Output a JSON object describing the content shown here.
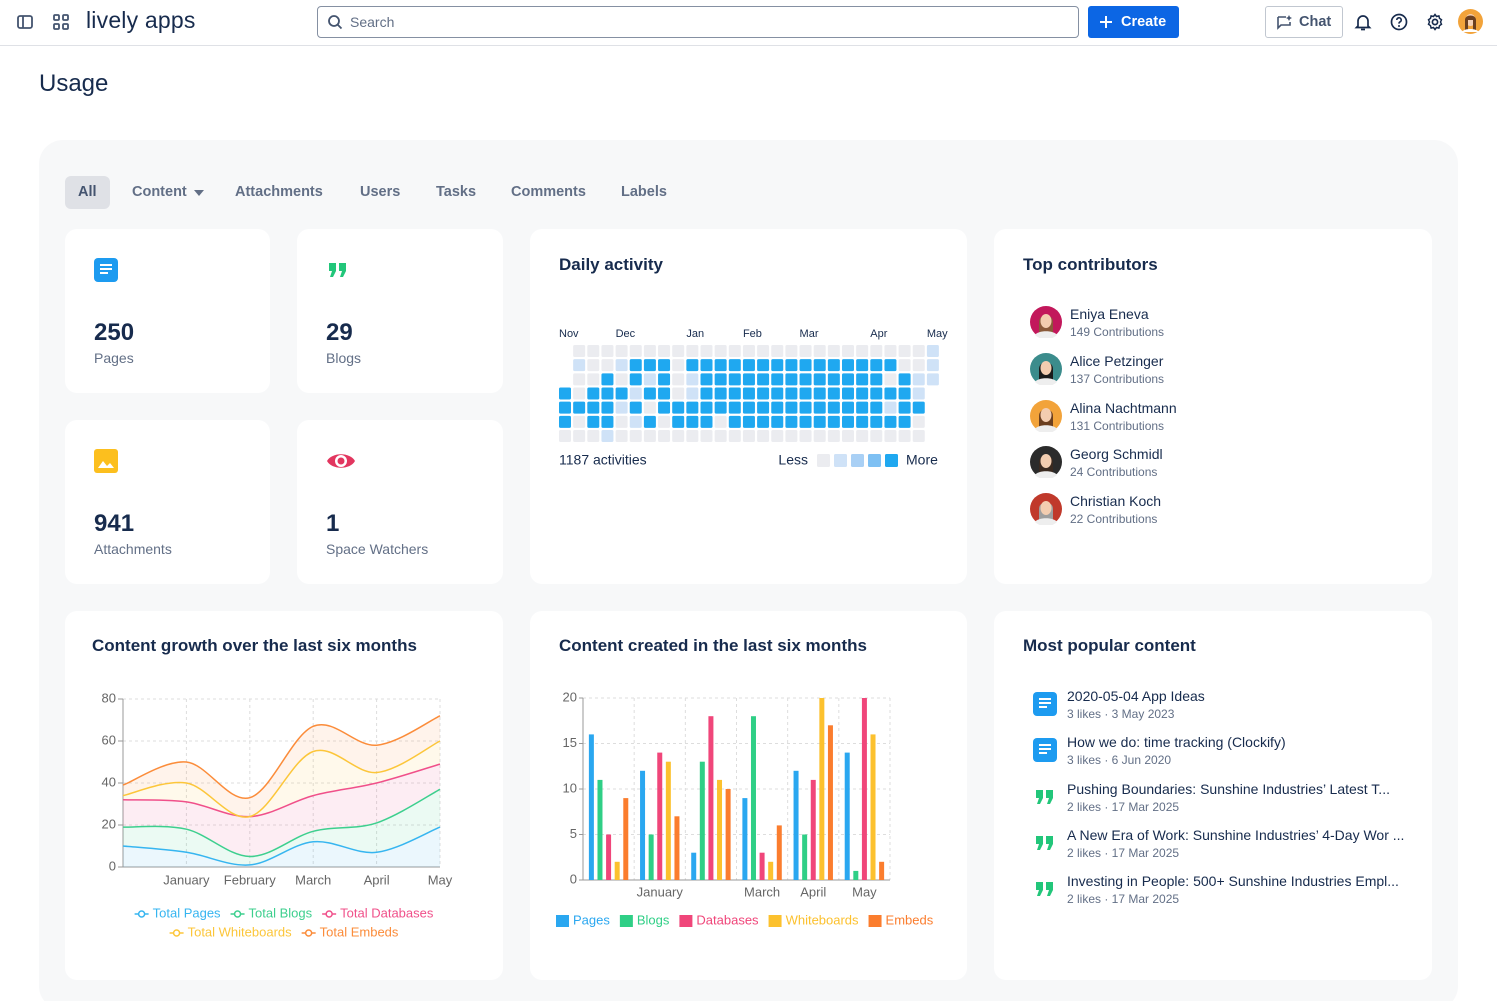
{
  "header": {
    "brand": "lively apps",
    "search": "Search",
    "create": "Create",
    "chat": "Chat"
  },
  "page_title": "Usage",
  "tabs": [
    "All",
    "Content",
    "Attachments",
    "Users",
    "Tasks",
    "Comments",
    "Labels"
  ],
  "stats": [
    {
      "value": 250,
      "label": "Pages",
      "icon": "page"
    },
    {
      "value": 29,
      "label": "Blogs",
      "icon": "blog"
    },
    {
      "value": 941,
      "label": "Attachments",
      "icon": "image"
    },
    {
      "value": 1,
      "label": "Space Watchers",
      "icon": "eye"
    }
  ],
  "daily_activity": {
    "title": "Daily activity",
    "weeks": [
      "Nov",
      null,
      null,
      null,
      "Dec",
      null,
      null,
      null,
      null,
      "Jan",
      null,
      null,
      null,
      "Feb",
      null,
      null,
      null,
      "Mar",
      null,
      null,
      null,
      null,
      "Apr",
      null,
      null,
      null,
      "May"
    ],
    "levels": [
      [
        null,
        0,
        0,
        0,
        0,
        0,
        0,
        0,
        0,
        0,
        0,
        0,
        0,
        0,
        0,
        0,
        0,
        0,
        0,
        0,
        0,
        0,
        0,
        0,
        0,
        0,
        1
      ],
      [
        null,
        1,
        0,
        0,
        1,
        4,
        4,
        4,
        0,
        4,
        4,
        4,
        4,
        4,
        4,
        4,
        4,
        4,
        4,
        4,
        4,
        4,
        4,
        4,
        0,
        0,
        1
      ],
      [
        null,
        0,
        0,
        4,
        0,
        4,
        1,
        4,
        0,
        1,
        4,
        4,
        4,
        4,
        4,
        4,
        4,
        4,
        4,
        4,
        4,
        4,
        4,
        0,
        4,
        1,
        1
      ],
      [
        4,
        0,
        4,
        4,
        4,
        1,
        4,
        4,
        0,
        1,
        4,
        4,
        4,
        4,
        4,
        4,
        4,
        4,
        4,
        4,
        4,
        4,
        4,
        4,
        4,
        1,
        null
      ],
      [
        4,
        4,
        4,
        4,
        1,
        4,
        0,
        4,
        4,
        4,
        4,
        4,
        4,
        4,
        4,
        4,
        4,
        4,
        4,
        4,
        4,
        4,
        4,
        1,
        4,
        4,
        null
      ],
      [
        4,
        0,
        4,
        4,
        0,
        1,
        4,
        0,
        4,
        4,
        4,
        0,
        4,
        4,
        4,
        4,
        4,
        4,
        4,
        4,
        4,
        4,
        4,
        4,
        4,
        0,
        null
      ],
      [
        0,
        0,
        0,
        1,
        0,
        0,
        0,
        0,
        0,
        0,
        0,
        0,
        0,
        0,
        0,
        0,
        0,
        0,
        0,
        0,
        0,
        0,
        0,
        0,
        0,
        0,
        null
      ]
    ],
    "total": "1187 activities",
    "legend": {
      "less": "Less",
      "more": "More",
      "levels": [
        0,
        1,
        2,
        3,
        4
      ],
      "colors": [
        "#ebecf0",
        "#cfe2f7",
        "#a9d0f5",
        "#7ec0f3",
        "#1fa8f0"
      ]
    }
  },
  "top_contributors": {
    "title": "Top contributors",
    "people": [
      {
        "name": "Eniya Eneva",
        "contributions": "149 Contributions"
      },
      {
        "name": "Alice Petzinger",
        "contributions": "137 Contributions"
      },
      {
        "name": "Alina Nachtmann",
        "contributions": "131 Contributions"
      },
      {
        "name": "Georg Schmidl",
        "contributions": "24 Contributions"
      },
      {
        "name": "Christian Koch",
        "contributions": "22 Contributions"
      }
    ]
  },
  "chart_data": [
    {
      "type": "line",
      "title": "Content growth over the last six months",
      "categories": [
        null,
        "January",
        "February",
        "March",
        "April",
        "May"
      ],
      "ylim": [
        0,
        80
      ],
      "yticks": [
        0,
        20,
        40,
        60,
        80
      ],
      "grid": true,
      "smooth": true,
      "fill": true,
      "series": [
        {
          "name": "Total Pages",
          "color": "#36b5f0",
          "values": [
            10,
            7,
            1,
            12,
            7,
            19
          ]
        },
        {
          "name": "Total Blogs",
          "color": "#3dcf8e",
          "values": [
            19,
            18,
            5,
            17,
            21,
            37
          ]
        },
        {
          "name": "Total Databases",
          "color": "#f0508a",
          "values": [
            32,
            31,
            24,
            34,
            40,
            49
          ]
        },
        {
          "name": "Total Whiteboards",
          "color": "#fcc63a",
          "values": [
            34,
            40,
            24,
            55,
            45,
            60
          ]
        },
        {
          "name": "Total Embeds",
          "color": "#fb8c3a",
          "values": [
            39,
            50,
            33,
            67,
            58,
            72
          ]
        }
      ]
    },
    {
      "type": "bar",
      "title": "Content created in the last six months",
      "categories": [
        null,
        "January",
        null,
        "March",
        "April",
        "May"
      ],
      "ylim": [
        0,
        20
      ],
      "yticks": [
        0,
        5,
        10,
        15,
        20
      ],
      "grid": true,
      "series": [
        {
          "name": "Pages",
          "color": "#2aa7f0",
          "values": [
            16,
            12,
            3,
            9,
            12,
            14
          ]
        },
        {
          "name": "Blogs",
          "color": "#2fcf86",
          "values": [
            11,
            5,
            13,
            18,
            5,
            1
          ]
        },
        {
          "name": "Databases",
          "color": "#f0467a",
          "values": [
            5,
            14,
            18,
            3,
            11,
            20
          ]
        },
        {
          "name": "Whiteboards",
          "color": "#fcc12e",
          "values": [
            2,
            13,
            11,
            2,
            20,
            16
          ]
        },
        {
          "name": "Embeds",
          "color": "#fb7d2e",
          "values": [
            9,
            7,
            10,
            6,
            17,
            2
          ]
        }
      ]
    }
  ],
  "popular": {
    "title": "Most popular content",
    "items": [
      {
        "title": "2020-05-04 App Ideas",
        "meta": "3 likes · 3 May 2023",
        "icon": "page"
      },
      {
        "title": "How we do: time tracking (Clockify)",
        "meta": "3 likes · 6 Jun 2020",
        "icon": "page"
      },
      {
        "title": "Pushing Boundaries: Sunshine Industries’ Latest T...",
        "meta": "2 likes · 17 Mar 2025",
        "icon": "blog"
      },
      {
        "title": "A New Era of Work: Sunshine Industries’ 4-Day Wor ...",
        "meta": "2 likes · 17 Mar 2025",
        "icon": "blog"
      },
      {
        "title": "Investing in People: 500+ Sunshine Industries Empl...",
        "meta": "2 likes · 17 Mar 2025",
        "icon": "blog"
      }
    ]
  }
}
